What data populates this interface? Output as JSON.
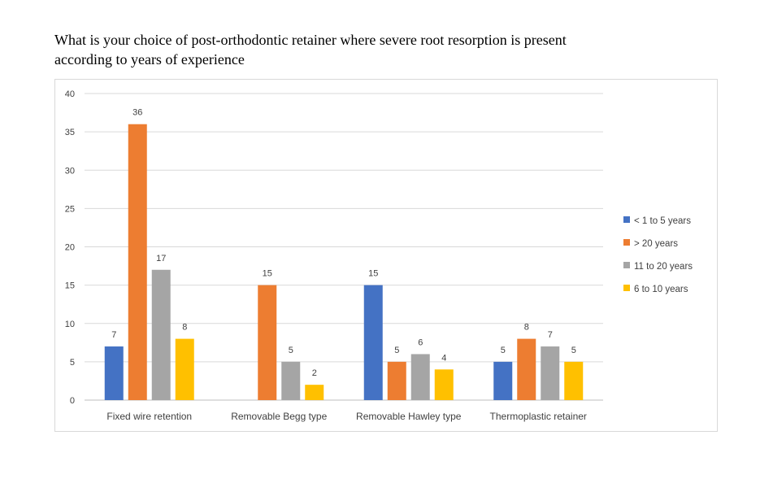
{
  "chart_data": {
    "type": "bar",
    "title_lines": [
      "What is your choice of post-orthodontic retainer where severe root resorption is present",
      "according to years of experience"
    ],
    "categories": [
      "Fixed wire retention",
      "Removable Begg type",
      "Removable Hawley type",
      "Thermoplastic retainer"
    ],
    "series": [
      {
        "name": "< 1 to 5 years",
        "color": "#4472c4",
        "values": [
          7,
          null,
          15,
          5
        ]
      },
      {
        "name": "> 20 years",
        "color": "#ed7d31",
        "values": [
          36,
          15,
          5,
          8
        ]
      },
      {
        "name": "11 to 20 years",
        "color": "#a5a5a5",
        "values": [
          17,
          5,
          6,
          7
        ]
      },
      {
        "name": "6 to 10 years",
        "color": "#ffc000",
        "values": [
          8,
          2,
          4,
          5
        ]
      }
    ],
    "yticks": [
      0,
      5,
      10,
      15,
      20,
      25,
      30,
      35,
      40
    ],
    "ylim": [
      0,
      40
    ],
    "grid": true,
    "legend_position": "right",
    "data_labels": true
  }
}
